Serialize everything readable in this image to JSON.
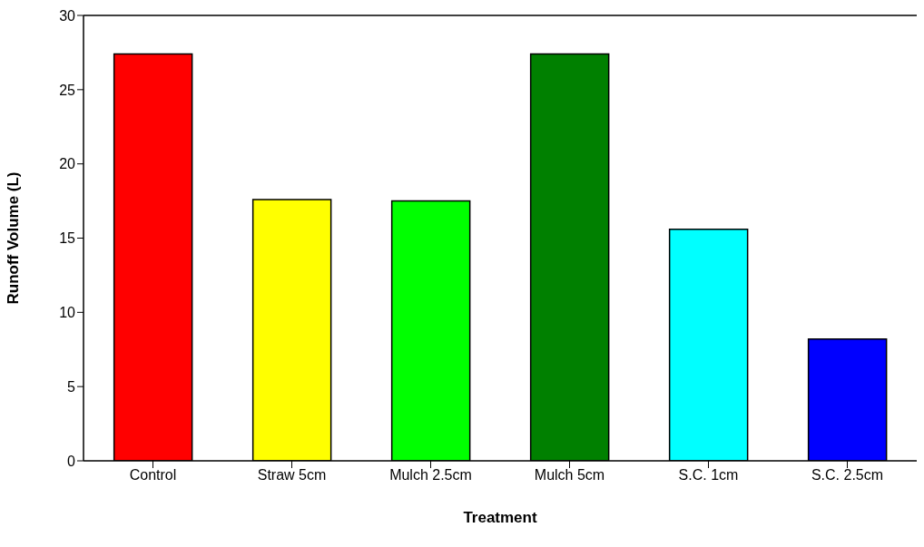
{
  "chart_data": {
    "type": "bar",
    "xlabel": "Treatment",
    "ylabel": "Runoff Volume (L)",
    "categories": [
      "Control",
      "Straw 5cm",
      "Mulch 2.5cm",
      "Mulch 5cm",
      "S.C. 1cm",
      "S.C. 2.5cm"
    ],
    "values": [
      27.4,
      17.6,
      17.5,
      27.4,
      15.6,
      8.2
    ],
    "colors": [
      "#ff0000",
      "#ffff00",
      "#00ff00",
      "#008000",
      "#00ffff",
      "#0000ff"
    ],
    "ylim": [
      0,
      30
    ],
    "yticks": [
      0,
      5,
      10,
      15,
      20,
      25,
      30
    ],
    "grid": false,
    "legend": false
  }
}
